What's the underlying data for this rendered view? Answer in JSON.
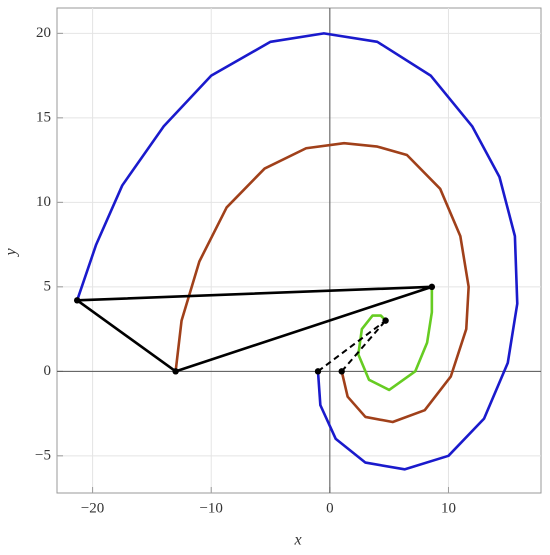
{
  "chart_data": {
    "type": "line",
    "x_label": "x",
    "y_label": "y",
    "xlim": [
      -23,
      17.8
    ],
    "ylim": [
      -7.2,
      21.5
    ],
    "xticks": [
      {
        "value": -20,
        "label": "−20"
      },
      {
        "value": -10,
        "label": "−10"
      },
      0,
      10
    ],
    "yticks": [
      {
        "value": -5,
        "label": "−5"
      },
      0,
      5,
      10,
      15,
      20
    ],
    "grid": true,
    "series": [
      {
        "color": "#1a1acc",
        "style": "solid",
        "x": [
          -1,
          -0.8,
          0.5,
          3,
          6.3,
          10,
          13,
          15,
          15.8,
          15.6,
          14.3,
          12,
          8.5,
          4,
          -0.5,
          -5,
          -10,
          -14,
          -17.5,
          -19.7,
          -21.3
        ],
        "values": [
          0,
          -2,
          -4,
          -5.4,
          -5.8,
          -5,
          -2.8,
          0.5,
          4,
          8,
          11.5,
          14.5,
          17.5,
          19.5,
          20,
          19.5,
          17.5,
          14.5,
          11,
          7.5,
          4.2
        ]
      },
      {
        "color": "#a0401a",
        "style": "solid",
        "x": [
          1,
          1.5,
          3,
          5.3,
          8,
          10.2,
          11.5,
          11.7,
          11,
          9.3,
          6.5,
          4,
          1.2,
          -2,
          -5.5,
          -8.7,
          -11,
          -12.5,
          -13
        ],
        "values": [
          0,
          -1.5,
          -2.7,
          -3,
          -2.3,
          -0.3,
          2.5,
          5,
          8,
          10.8,
          12.8,
          13.3,
          13.5,
          13.2,
          12,
          9.7,
          6.5,
          3,
          0
        ]
      },
      {
        "color": "#66cc22",
        "style": "solid",
        "x": [
          8.6,
          8.6,
          8.2,
          7.2,
          5,
          3.3,
          2.4,
          2.7,
          3.6,
          4.3,
          4.7
        ],
        "values": [
          5,
          3.5,
          1.7,
          0,
          -1.1,
          -0.5,
          1,
          2.5,
          3.3,
          3.3,
          3
        ]
      },
      {
        "color": "#000000",
        "style": "solid",
        "x": [
          -21.3,
          8.6,
          -13,
          -21.3
        ],
        "values": [
          4.2,
          5,
          0,
          4.2
        ]
      },
      {
        "color": "#000000",
        "style": "dashed",
        "x": [
          -1,
          4.7
        ],
        "values": [
          0,
          3
        ]
      },
      {
        "color": "#000000",
        "style": "dashed",
        "x": [
          1,
          4.7
        ],
        "values": [
          0,
          3
        ]
      },
      {
        "color": "#000000",
        "style": "points",
        "x": [
          -21.3,
          8.6,
          -13,
          -1,
          1,
          4.7
        ],
        "values": [
          4.2,
          5,
          0,
          0,
          0,
          3
        ]
      }
    ]
  }
}
